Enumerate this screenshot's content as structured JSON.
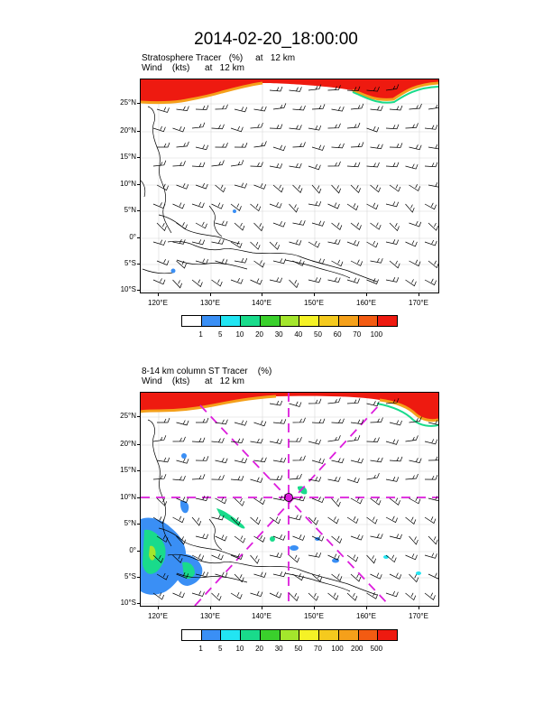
{
  "title": "2014-02-20_18:00:00",
  "panels": [
    {
      "id": "top",
      "subtitle_line1": "Stratosphere Tracer   (%)     at   12 km",
      "subtitle_line2": "Wind    (kts)      at   12 km",
      "lat_ticks": [
        "25°N",
        "20°N",
        "15°N",
        "10°N",
        "5°N",
        "0°",
        "5°S",
        "10°S"
      ],
      "lon_ticks": [
        "120°E",
        "130°E",
        "140°E",
        "150°E",
        "160°E",
        "170°E"
      ],
      "colorbar_labels": [
        "1",
        "5",
        "10",
        "20",
        "30",
        "40",
        "50",
        "60",
        "70",
        "100"
      ]
    },
    {
      "id": "bottom",
      "subtitle_line1": "8-14 km column ST Tracer    (%)",
      "subtitle_line2": "Wind    (kts)      at   12 km",
      "lat_ticks": [
        "25°N",
        "20°N",
        "15°N",
        "10°N",
        "5°N",
        "0°",
        "5°S",
        "10°S"
      ],
      "lon_ticks": [
        "120°E",
        "130°E",
        "140°E",
        "150°E",
        "160°E",
        "170°E"
      ],
      "colorbar_labels": [
        "1",
        "5",
        "10",
        "20",
        "30",
        "50",
        "70",
        "100",
        "200",
        "500"
      ]
    }
  ],
  "colorbar_colors": [
    "#ffffff",
    "#3a8ff5",
    "#22e5f2",
    "#19db8b",
    "#3ad02c",
    "#a4e62c",
    "#f5f226",
    "#f5ca1e",
    "#f5a01a",
    "#f35b12",
    "#ee1a10"
  ],
  "colors": {
    "tracer_high": "#ee1a10",
    "marker": "#dd1ddd",
    "coast": "#000000"
  }
}
